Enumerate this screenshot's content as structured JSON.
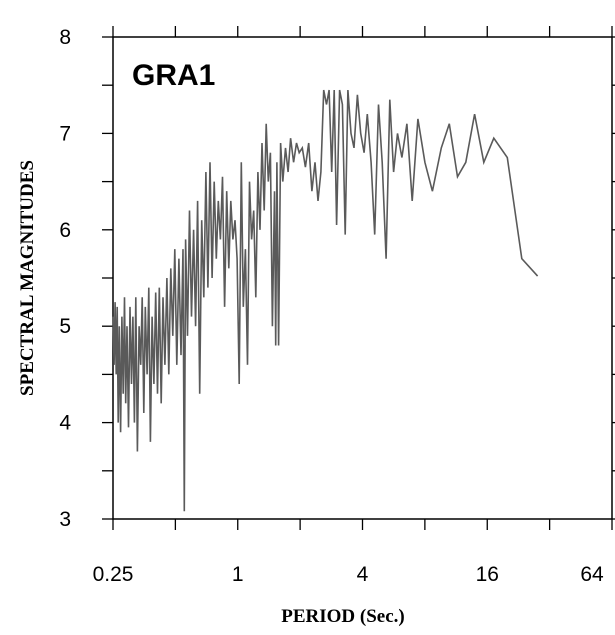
{
  "chart_data": {
    "type": "line",
    "title": "GRA1",
    "xlabel": "PERIOD (Sec.)",
    "ylabel": "SPECTRAL MAGNITUDES",
    "xscale": "log2",
    "xlim": [
      0.25,
      64
    ],
    "ylim": [
      3,
      8
    ],
    "xticks": [
      0.25,
      1,
      4,
      16,
      64
    ],
    "xtick_labels": [
      "0.25",
      "1",
      "4",
      "16",
      "64"
    ],
    "yticks": [
      3,
      4,
      5,
      6,
      7,
      8
    ],
    "ytick_labels": [
      "3",
      "4",
      "5",
      "6",
      "7",
      "8"
    ],
    "grid": false,
    "line_color": "#5a5a5a",
    "series": [
      {
        "points": [
          [
            0.25,
            5.1
          ],
          [
            0.253,
            4.6
          ],
          [
            0.256,
            5.25
          ],
          [
            0.259,
            4.5
          ],
          [
            0.262,
            5.2
          ],
          [
            0.265,
            4.0
          ],
          [
            0.268,
            5.0
          ],
          [
            0.272,
            3.9
          ],
          [
            0.276,
            5.1
          ],
          [
            0.28,
            4.3
          ],
          [
            0.284,
            5.3
          ],
          [
            0.288,
            4.2
          ],
          [
            0.292,
            5.0
          ],
          [
            0.297,
            3.95
          ],
          [
            0.302,
            5.2
          ],
          [
            0.307,
            4.4
          ],
          [
            0.312,
            5.1
          ],
          [
            0.317,
            4.0
          ],
          [
            0.322,
            5.3
          ],
          [
            0.328,
            3.7
          ],
          [
            0.334,
            5.0
          ],
          [
            0.34,
            4.6
          ],
          [
            0.346,
            5.3
          ],
          [
            0.352,
            4.1
          ],
          [
            0.358,
            5.2
          ],
          [
            0.365,
            4.5
          ],
          [
            0.372,
            5.4
          ],
          [
            0.379,
            3.8
          ],
          [
            0.386,
            5.1
          ],
          [
            0.394,
            4.4
          ],
          [
            0.402,
            5.35
          ],
          [
            0.41,
            4.3
          ],
          [
            0.418,
            5.4
          ],
          [
            0.427,
            4.2
          ],
          [
            0.436,
            5.3
          ],
          [
            0.445,
            4.6
          ],
          [
            0.455,
            5.5
          ],
          [
            0.465,
            4.5
          ],
          [
            0.475,
            5.6
          ],
          [
            0.486,
            4.9
          ],
          [
            0.497,
            5.8
          ],
          [
            0.508,
            4.6
          ],
          [
            0.52,
            5.7
          ],
          [
            0.532,
            4.7
          ],
          [
            0.544,
            5.8
          ],
          [
            0.552,
            3.08
          ],
          [
            0.56,
            5.9
          ],
          [
            0.572,
            4.9
          ],
          [
            0.585,
            6.2
          ],
          [
            0.598,
            5.1
          ],
          [
            0.612,
            6.0
          ],
          [
            0.626,
            5.0
          ],
          [
            0.64,
            6.3
          ],
          [
            0.655,
            4.3
          ],
          [
            0.67,
            6.1
          ],
          [
            0.686,
            5.3
          ],
          [
            0.702,
            6.6
          ],
          [
            0.718,
            5.4
          ],
          [
            0.735,
            6.7
          ],
          [
            0.752,
            5.5
          ],
          [
            0.77,
            6.5
          ],
          [
            0.788,
            5.7
          ],
          [
            0.806,
            6.3
          ],
          [
            0.825,
            5.9
          ],
          [
            0.844,
            6.55
          ],
          [
            0.864,
            5.2
          ],
          [
            0.884,
            6.4
          ],
          [
            0.905,
            5.6
          ],
          [
            0.926,
            6.3
          ],
          [
            0.948,
            5.9
          ],
          [
            0.97,
            6.1
          ],
          [
            0.993,
            5.7
          ],
          [
            1.016,
            4.4
          ],
          [
            1.04,
            6.7
          ],
          [
            1.064,
            5.2
          ],
          [
            1.089,
            5.8
          ],
          [
            1.114,
            4.6
          ],
          [
            1.14,
            6.5
          ],
          [
            1.167,
            5.9
          ],
          [
            1.194,
            6.2
          ],
          [
            1.222,
            5.3
          ],
          [
            1.251,
            6.6
          ],
          [
            1.28,
            6.0
          ],
          [
            1.31,
            6.9
          ],
          [
            1.341,
            6.2
          ],
          [
            1.372,
            7.1
          ],
          [
            1.404,
            6.5
          ],
          [
            1.437,
            6.8
          ],
          [
            1.47,
            5.0
          ],
          [
            1.504,
            6.4
          ],
          [
            1.525,
            4.8
          ],
          [
            1.545,
            6.7
          ],
          [
            1.575,
            4.8
          ],
          [
            1.61,
            6.9
          ],
          [
            1.65,
            6.5
          ],
          [
            1.7,
            6.85
          ],
          [
            1.75,
            6.6
          ],
          [
            1.8,
            6.95
          ],
          [
            1.86,
            6.7
          ],
          [
            1.92,
            6.9
          ],
          [
            1.98,
            6.8
          ],
          [
            2.05,
            6.85
          ],
          [
            2.12,
            6.65
          ],
          [
            2.2,
            6.9
          ],
          [
            2.28,
            6.4
          ],
          [
            2.36,
            6.7
          ],
          [
            2.44,
            6.3
          ],
          [
            2.52,
            6.6
          ],
          [
            2.6,
            7.45
          ],
          [
            2.68,
            7.3
          ],
          [
            2.76,
            7.45
          ],
          [
            2.84,
            6.6
          ],
          [
            2.92,
            7.45
          ],
          [
            3.0,
            6.05
          ],
          [
            3.1,
            7.45
          ],
          [
            3.2,
            7.3
          ],
          [
            3.3,
            5.95
          ],
          [
            3.4,
            7.45
          ],
          [
            3.52,
            7.0
          ],
          [
            3.64,
            6.85
          ],
          [
            3.78,
            7.4
          ],
          [
            3.92,
            7.0
          ],
          [
            4.07,
            6.8
          ],
          [
            4.22,
            7.2
          ],
          [
            4.4,
            6.7
          ],
          [
            4.58,
            5.95
          ],
          [
            4.78,
            7.3
          ],
          [
            4.98,
            6.7
          ],
          [
            5.2,
            5.7
          ],
          [
            5.42,
            7.35
          ],
          [
            5.65,
            6.6
          ],
          [
            5.9,
            7.0
          ],
          [
            6.2,
            6.75
          ],
          [
            6.55,
            7.1
          ],
          [
            6.95,
            6.3
          ],
          [
            7.4,
            7.15
          ],
          [
            8.0,
            6.7
          ],
          [
            8.7,
            6.4
          ],
          [
            9.6,
            6.85
          ],
          [
            10.5,
            7.1
          ],
          [
            11.5,
            6.55
          ],
          [
            12.6,
            6.7
          ],
          [
            13.9,
            7.2
          ],
          [
            15.4,
            6.7
          ],
          [
            17.2,
            6.95
          ],
          [
            20.0,
            6.75
          ],
          [
            23.5,
            5.7
          ],
          [
            28.0,
            5.52
          ]
        ]
      }
    ]
  }
}
